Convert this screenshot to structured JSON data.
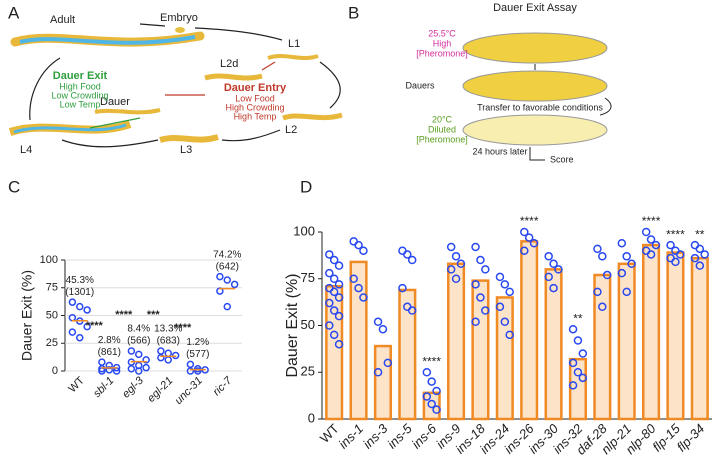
{
  "panels": {
    "a": {
      "letter": "A",
      "adult": "Adult",
      "embryo": "Embryo",
      "l1": "L1",
      "l2d": "L2d",
      "l2": "L2",
      "l3": "L3",
      "l4": "L4",
      "dauer": "Dauer",
      "exit": [
        "Dauer Exit",
        "High Food",
        "Low Crowding",
        "Low Temp"
      ],
      "entry": [
        "Dauer Entry",
        "Low Food",
        "High Crowding",
        "High Temp"
      ]
    },
    "b": {
      "letter": "B",
      "title": "Dauer Exit Assay",
      "top": [
        "25.5°C",
        "High",
        "[Pheromone]"
      ],
      "dauers": "Dauers",
      "transfer": "Transfer to favorable conditions",
      "bottom": [
        "20°C",
        "Diluted",
        "[Pheromone]"
      ],
      "later": "24 hours later",
      "score": "Score"
    }
  },
  "chart_data": [
    {
      "type": "dot",
      "letter": "C",
      "y_label": "Dauer Exit (%)",
      "categories": [
        "WT",
        "sbl-1",
        "egl-3",
        "egl-21",
        "unc-31",
        "ric-7"
      ],
      "values": [
        45.3,
        2.8,
        8.4,
        13.3,
        1.2,
        74.2
      ],
      "value_labels": [
        "45.3%",
        "2.8%",
        "8.4%",
        "13.3%",
        "1.2%",
        "74.2%"
      ],
      "counts": [
        "(1301)",
        "(861)",
        "(566)",
        "(683)",
        "(577)",
        "(642)"
      ],
      "significance": [
        null,
        "****",
        "****",
        "***",
        "****",
        null
      ],
      "points": [
        [
          62,
          58,
          55,
          48,
          45,
          40,
          35,
          30
        ],
        [
          8,
          5,
          3,
          2,
          1,
          0,
          0
        ],
        [
          18,
          15,
          10,
          8,
          5,
          3,
          2,
          0
        ],
        [
          18,
          16,
          14,
          12,
          10
        ],
        [
          6,
          2,
          1,
          0,
          0
        ],
        [
          85,
          82,
          78,
          72,
          58
        ]
      ],
      "ylim": [
        0,
        100
      ],
      "yticks": [
        0,
        25,
        50,
        75,
        100
      ],
      "grid": true,
      "point_color": "#2848f0",
      "median_color": "#f08a24"
    },
    {
      "type": "bar",
      "letter": "D",
      "y_label": "Dauer Exit (%)",
      "categories": [
        "WT",
        "ins-1",
        "ins-3",
        "ins-5",
        "ins-6",
        "ins-9",
        "ins-18",
        "ins-24",
        "ins-26",
        "ins-30",
        "ins-32",
        "daf-28",
        "nlp-21",
        "nlp-80",
        "flp-15",
        "flp-34"
      ],
      "values": [
        71,
        84,
        39,
        69,
        14,
        83,
        74,
        65,
        95,
        80,
        32,
        77,
        83,
        93,
        89,
        86
      ],
      "significance": [
        null,
        null,
        null,
        null,
        "****",
        null,
        null,
        null,
        "****",
        null,
        "**",
        null,
        null,
        "****",
        "****",
        "**"
      ],
      "points": [
        [
          88,
          85,
          82,
          78,
          75,
          72,
          70,
          68,
          65,
          62,
          58,
          55,
          50,
          45,
          40
        ],
        [
          95,
          93,
          90,
          75,
          70,
          65
        ],
        [
          52,
          48,
          30,
          25
        ],
        [
          90,
          88,
          85,
          70,
          60,
          58
        ],
        [
          25,
          20,
          15,
          12,
          8,
          5
        ],
        [
          92,
          87,
          83,
          80,
          75
        ],
        [
          92,
          85,
          80,
          72,
          65,
          58,
          52
        ],
        [
          76,
          72,
          68,
          60,
          52,
          45
        ],
        [
          100,
          97,
          94,
          90
        ],
        [
          87,
          83,
          80,
          76,
          70
        ],
        [
          48,
          42,
          35,
          30,
          25,
          22,
          18
        ],
        [
          91,
          87,
          77,
          68,
          60
        ],
        [
          94,
          87,
          83,
          78,
          68
        ],
        [
          100,
          96,
          93,
          90,
          88
        ],
        [
          93,
          90,
          88,
          86,
          84
        ],
        [
          93,
          91,
          88,
          86,
          82
        ]
      ],
      "ylim": [
        0,
        100
      ],
      "yticks": [
        0,
        25,
        50,
        75,
        100
      ],
      "grid": false,
      "color": "#f08a24",
      "fill": "#fde3c8",
      "point_color": "#2848f0"
    }
  ]
}
